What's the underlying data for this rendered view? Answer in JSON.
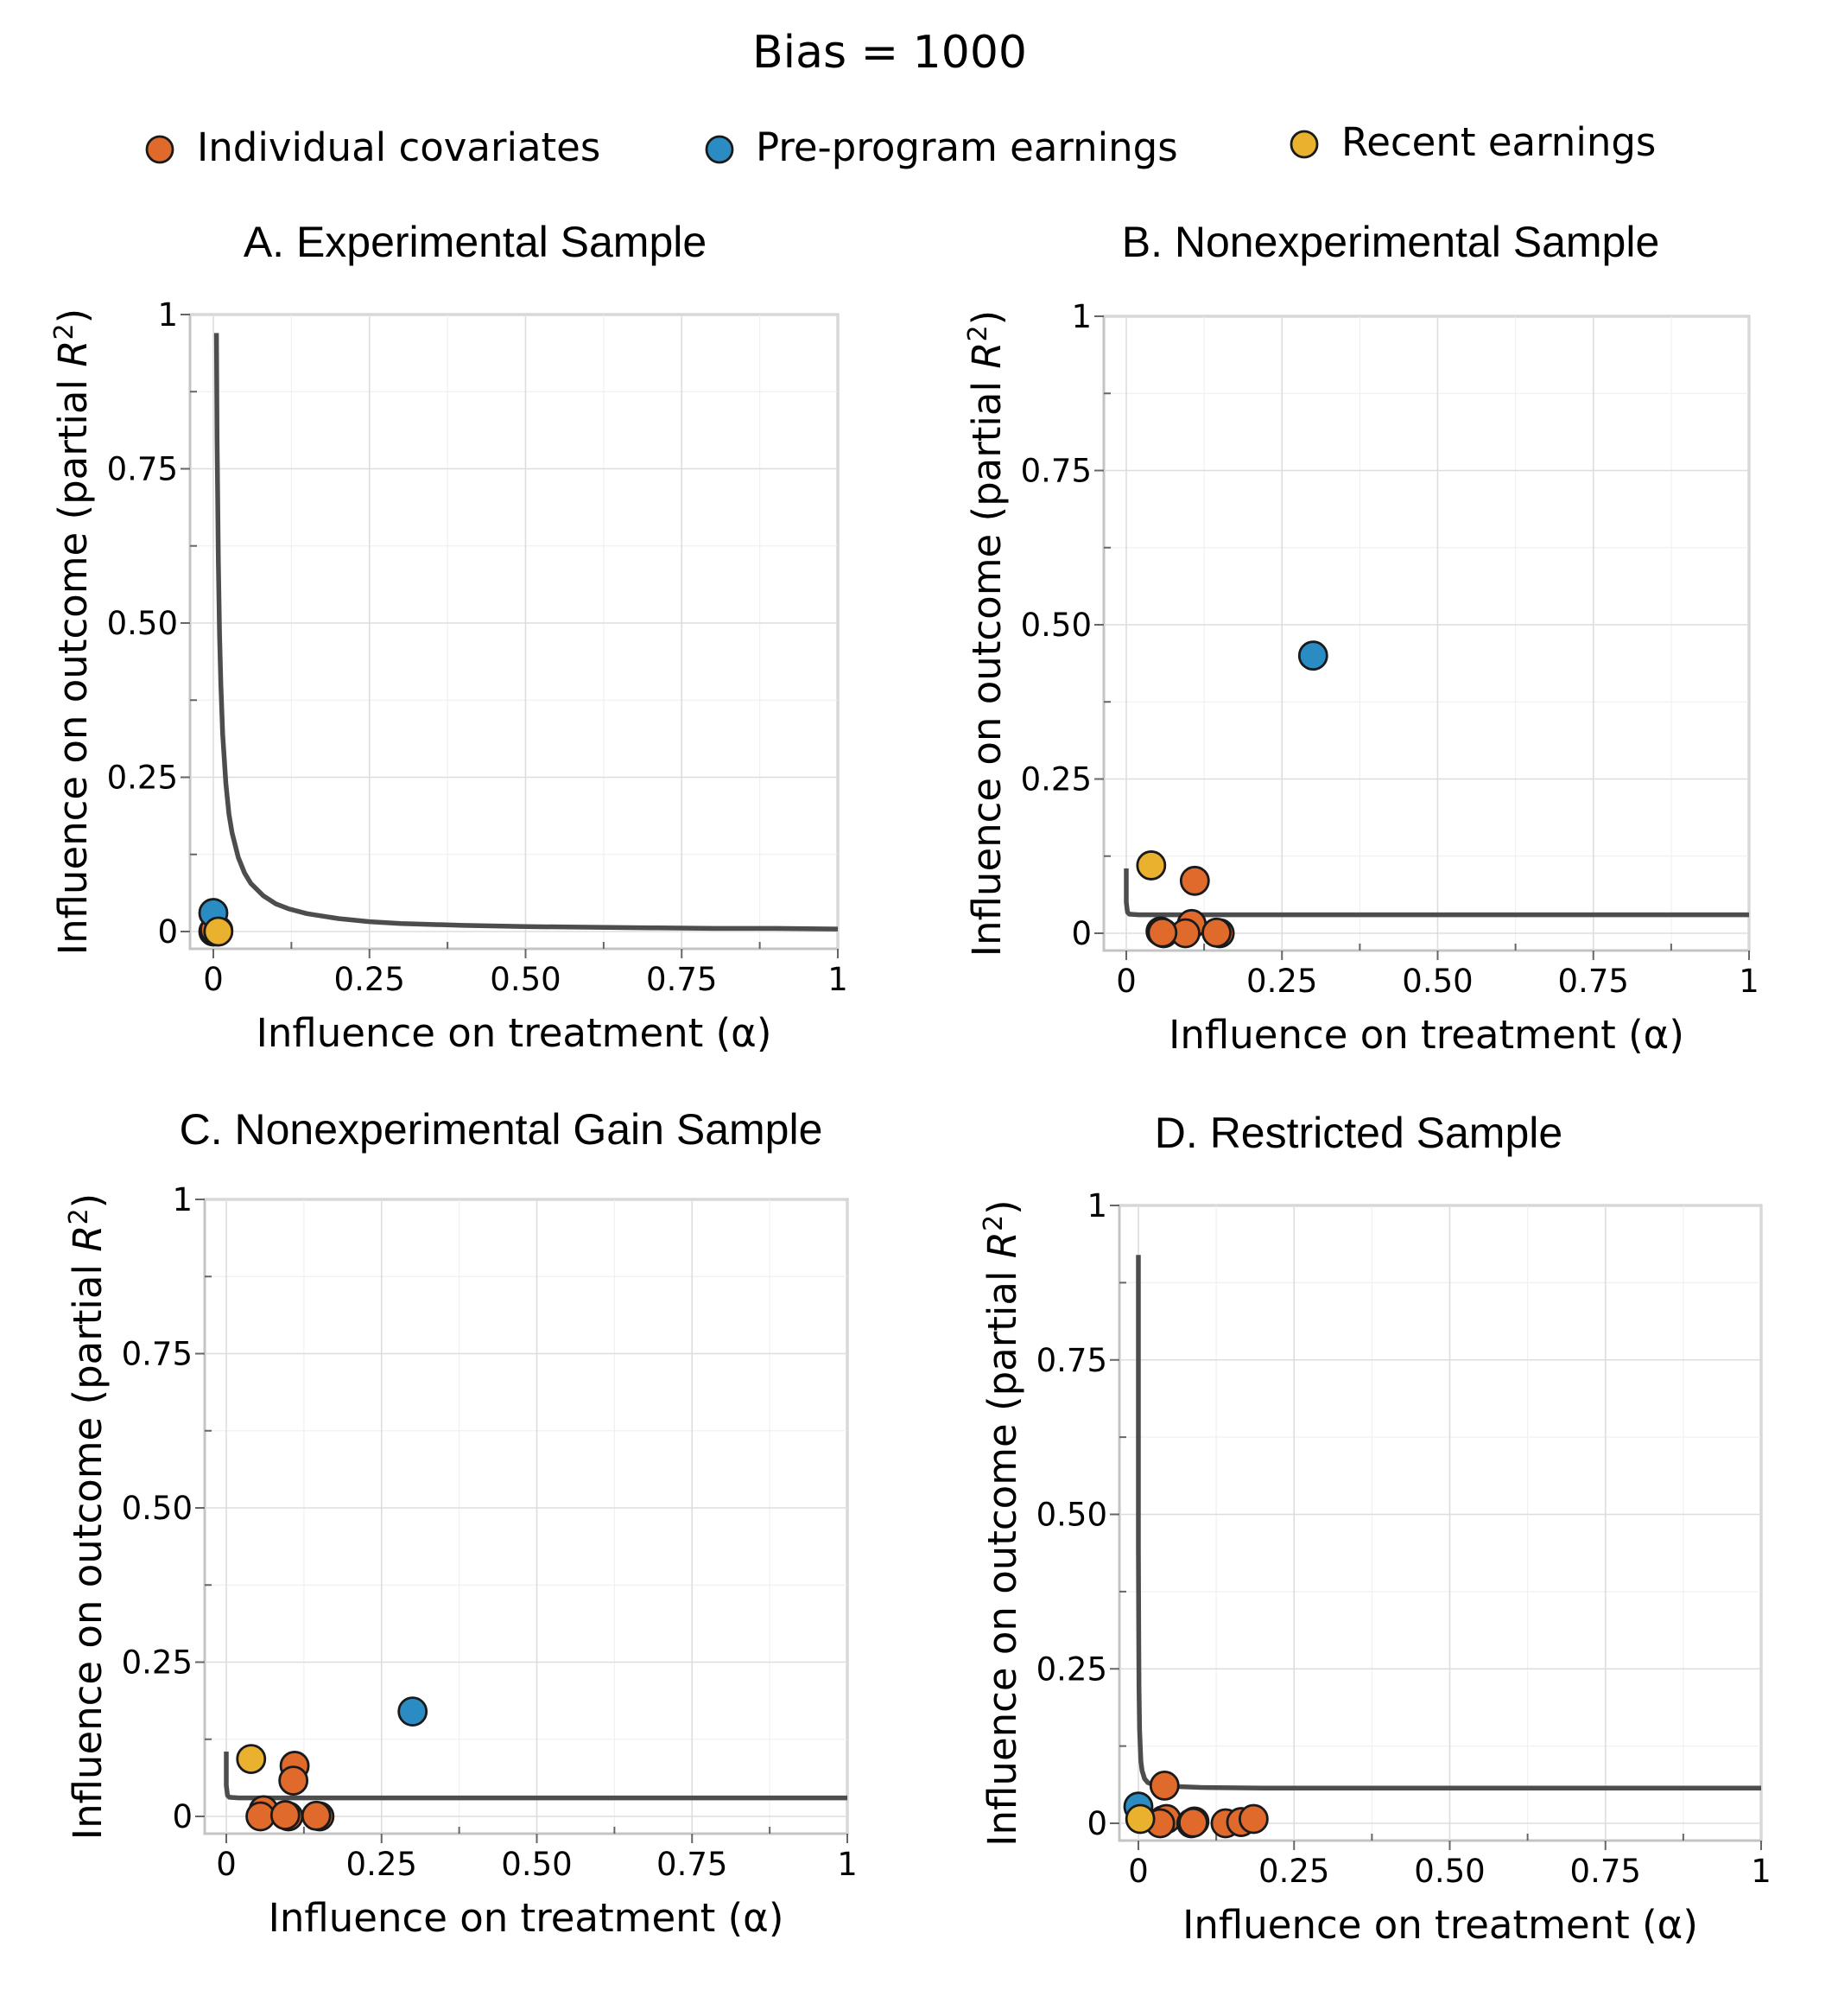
{
  "title": "Bias = 1000",
  "legend": [
    {
      "label": "Individual covariates",
      "color": "#e06a2c"
    },
    {
      "label": "Pre-program earnings",
      "color": "#2b8cc4"
    },
    {
      "label": "Recent earnings",
      "color": "#eab12f"
    }
  ],
  "axis_labels": {
    "x": "Influence on treatment (α)",
    "y_main": "Influence on outcome (partial ",
    "y_sym": "R",
    "y_sup": "2",
    "y_close": ")"
  },
  "tick_labels": [
    "0",
    "0.25",
    "0.50",
    "0.75",
    "1"
  ],
  "chart_data": [
    {
      "type": "scatter",
      "title": "A. Experimental Sample",
      "xlabel": "Influence on treatment (α)",
      "ylabel": "Influence on outcome (partial R2)",
      "xlim": [
        0,
        1
      ],
      "ylim": [
        0,
        1
      ],
      "xticks": [
        0,
        0.25,
        0.5,
        0.75,
        1
      ],
      "yticks": [
        0,
        0.25,
        0.5,
        0.75,
        1
      ],
      "grid": true,
      "series": [
        {
          "name": "Individual covariates",
          "color": "#e06a2c",
          "x": [
            0.0,
            0.003,
            0.006,
            0.008,
            0.002
          ],
          "y": [
            0.0,
            0.001,
            0.0,
            0.002,
            0.003
          ]
        },
        {
          "name": "Pre-program earnings",
          "color": "#2b8cc4",
          "x": [
            0.0
          ],
          "y": [
            0.03
          ]
        },
        {
          "name": "Recent earnings",
          "color": "#eab12f",
          "x": [
            0.008
          ],
          "y": [
            0.0
          ]
        }
      ],
      "bound_curve": {
        "x": [
          0.005,
          0.006,
          0.008,
          0.01,
          0.012,
          0.015,
          0.02,
          0.025,
          0.03,
          0.04,
          0.05,
          0.06,
          0.08,
          0.1,
          0.12,
          0.15,
          0.2,
          0.25,
          0.3,
          0.4,
          0.5,
          0.6,
          0.7,
          0.8,
          0.9,
          1.0
        ],
        "y": [
          0.97,
          0.8,
          0.6,
          0.48,
          0.4,
          0.32,
          0.24,
          0.19,
          0.16,
          0.12,
          0.095,
          0.078,
          0.058,
          0.045,
          0.037,
          0.029,
          0.021,
          0.016,
          0.013,
          0.01,
          0.008,
          0.007,
          0.006,
          0.005,
          0.005,
          0.004
        ]
      }
    },
    {
      "type": "scatter",
      "title": "B. Nonexperimental Sample",
      "xlabel": "Influence on treatment (α)",
      "ylabel": "Influence on outcome (partial R2)",
      "xlim": [
        0,
        1
      ],
      "ylim": [
        0,
        1
      ],
      "xticks": [
        0,
        0.25,
        0.5,
        0.75,
        1
      ],
      "yticks": [
        0,
        0.25,
        0.5,
        0.75,
        1
      ],
      "grid": true,
      "series": [
        {
          "name": "Individual covariates",
          "color": "#e06a2c",
          "x": [
            0.11,
            0.105,
            0.055,
            0.06,
            0.095,
            0.15,
            0.145,
            0.058
          ],
          "y": [
            0.085,
            0.015,
            0.003,
            0.0,
            0.0,
            0.0,
            0.001,
            0.001
          ]
        },
        {
          "name": "Pre-program earnings",
          "color": "#2b8cc4",
          "x": [
            0.3
          ],
          "y": [
            0.45
          ]
        },
        {
          "name": "Recent earnings",
          "color": "#eab12f",
          "x": [
            0.04
          ],
          "y": [
            0.11
          ]
        }
      ],
      "bound_curve": {
        "x": [
          0.0,
          0.0,
          0.002,
          0.005,
          0.02,
          0.1,
          0.3,
          0.5,
          1.0
        ],
        "y": [
          0.105,
          0.05,
          0.034,
          0.031,
          0.03,
          0.03,
          0.03,
          0.03,
          0.03
        ]
      }
    },
    {
      "type": "scatter",
      "title": "C. Nonexperimental Gain Sample",
      "xlabel": "Influence on treatment (α)",
      "ylabel": "Influence on outcome (partial R2)",
      "xlim": [
        0,
        1
      ],
      "ylim": [
        0,
        1
      ],
      "xticks": [
        0,
        0.25,
        0.5,
        0.75,
        1
      ],
      "yticks": [
        0,
        0.25,
        0.5,
        0.75,
        1
      ],
      "grid": true,
      "series": [
        {
          "name": "Individual covariates",
          "color": "#e06a2c",
          "x": [
            0.11,
            0.108,
            0.06,
            0.055,
            0.1,
            0.15,
            0.145,
            0.095
          ],
          "y": [
            0.082,
            0.058,
            0.01,
            0.0,
            0.0,
            0.0,
            0.001,
            0.002
          ]
        },
        {
          "name": "Pre-program earnings",
          "color": "#2b8cc4",
          "x": [
            0.3
          ],
          "y": [
            0.17
          ]
        },
        {
          "name": "Recent earnings",
          "color": "#eab12f",
          "x": [
            0.04
          ],
          "y": [
            0.093
          ]
        }
      ],
      "bound_curve": {
        "x": [
          0.0,
          0.0,
          0.002,
          0.005,
          0.02,
          0.1,
          0.3,
          0.5,
          1.0
        ],
        "y": [
          0.105,
          0.05,
          0.034,
          0.031,
          0.03,
          0.03,
          0.03,
          0.03,
          0.03
        ]
      }
    },
    {
      "type": "scatter",
      "title": "D. Restricted Sample",
      "xlabel": "Influence on treatment (α)",
      "ylabel": "Influence on outcome (partial R2)",
      "xlim": [
        0,
        1
      ],
      "ylim": [
        0,
        1
      ],
      "xticks": [
        0,
        0.25,
        0.5,
        0.75,
        1
      ],
      "yticks": [
        0,
        0.25,
        0.5,
        0.75,
        1
      ],
      "grid": true,
      "series": [
        {
          "name": "Individual covariates",
          "color": "#e06a2c",
          "x": [
            0.042,
            0.04,
            0.045,
            0.035,
            0.09,
            0.085,
            0.14,
            0.165,
            0.185,
            0.088
          ],
          "y": [
            0.061,
            0.005,
            0.007,
            0.0,
            0.003,
            0.0,
            0.0,
            0.002,
            0.007,
            0.001
          ]
        },
        {
          "name": "Pre-program earnings",
          "color": "#2b8cc4",
          "x": [
            0.0
          ],
          "y": [
            0.027
          ]
        },
        {
          "name": "Recent earnings",
          "color": "#eab12f",
          "x": [
            0.003
          ],
          "y": [
            0.007
          ]
        }
      ],
      "bound_curve": {
        "x": [
          0.0,
          0.0,
          0.0005,
          0.001,
          0.002,
          0.004,
          0.006,
          0.01,
          0.015,
          0.02,
          0.03,
          0.05,
          0.1,
          0.2,
          0.5,
          1.0
        ],
        "y": [
          0.92,
          0.45,
          0.3,
          0.22,
          0.15,
          0.1,
          0.085,
          0.072,
          0.066,
          0.064,
          0.062,
          0.06,
          0.058,
          0.057,
          0.057,
          0.057
        ]
      }
    }
  ]
}
